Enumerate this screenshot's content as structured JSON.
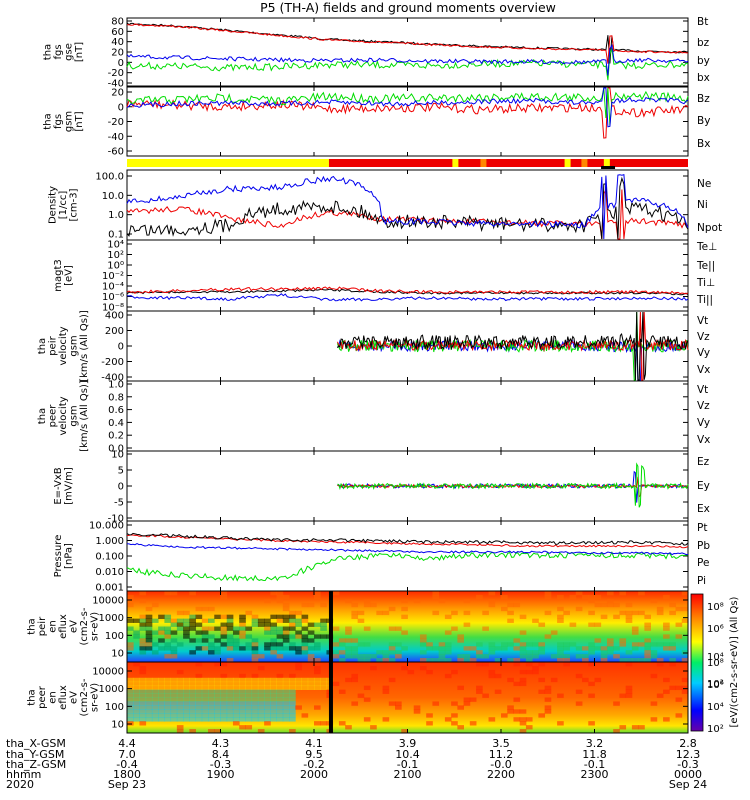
{
  "title": "P5 (TH-A) fields and ground moments overview",
  "colors": {
    "black": "#000000",
    "red": "#ee0000",
    "green": "#00dd00",
    "blue": "#0000ee",
    "yellow": "#ffff00",
    "orange": "#ff8800"
  },
  "chart_data": [
    {
      "type": "line",
      "id": "fgs_gse",
      "ylabel": [
        "tha",
        "fgs",
        "gse",
        "[nT]"
      ],
      "yticks": [
        "80",
        "60",
        "40",
        "20",
        "0",
        "-20",
        "-40"
      ],
      "ylim": [
        -40,
        80
      ],
      "series": [
        {
          "name": "Bt",
          "color": "#000000",
          "values": [
            70,
            66,
            58,
            50,
            42,
            38,
            34,
            30,
            27,
            25,
            22,
            20
          ]
        },
        {
          "name": "bz",
          "color": "#ee0000",
          "values": [
            69,
            65,
            57,
            49,
            41,
            37,
            33,
            29,
            26,
            24,
            21,
            19
          ]
        },
        {
          "name": "by",
          "color": "#00dd00",
          "values": [
            -4,
            -5,
            -8,
            -6,
            -2,
            -3,
            -4,
            -1,
            0,
            -2,
            -4,
            -1
          ]
        },
        {
          "name": "bx",
          "color": "#0000ee",
          "values": [
            12,
            10,
            8,
            6,
            5,
            6,
            4,
            3,
            3,
            2,
            6,
            4
          ]
        }
      ]
    },
    {
      "type": "line",
      "id": "fgs_gsm",
      "ylabel": [
        "tha",
        "fgs",
        "gsm",
        "[nT]"
      ],
      "yticks": [
        "20",
        "0",
        "-20",
        "-40",
        "-60"
      ],
      "ylim": [
        -70,
        25
      ],
      "series": [
        {
          "name": "Bz",
          "color": "#ee0000",
          "values": [
            2,
            0,
            -2,
            1,
            -5,
            -4,
            -3,
            -6,
            -4,
            -3,
            -10,
            -6
          ]
        },
        {
          "name": "By",
          "color": "#00dd00",
          "values": [
            5,
            8,
            10,
            6,
            12,
            9,
            10,
            11,
            12,
            10,
            14,
            8
          ]
        },
        {
          "name": "Bx",
          "color": "#0000ee",
          "values": [
            0,
            2,
            3,
            2,
            4,
            2,
            3,
            5,
            6,
            3,
            8,
            5
          ]
        }
      ]
    },
    {
      "type": "bar",
      "id": "region",
      "note_colors": [
        "#ffff00",
        "#ee0000"
      ],
      "segments": [
        0,
        0.44,
        1
      ]
    },
    {
      "type": "line",
      "id": "density",
      "log": true,
      "ylabel": [
        "Density",
        "[1/cc]",
        "[cm-3]"
      ],
      "yticks": [
        "100.0",
        "10.0",
        "1.0",
        "0.1"
      ],
      "ylim": [
        0.1,
        200
      ],
      "series": [
        {
          "name": "Ne",
          "color": "#ee0000",
          "values": [
            2,
            3,
            1,
            0.4,
            2,
            1,
            0.8,
            0.7,
            0.6,
            0.6,
            0.8,
            0.5
          ]
        },
        {
          "name": "Ni",
          "color": "#000000",
          "values": [
            0.3,
            0.3,
            0.5,
            3,
            4,
            0.8,
            0.7,
            0.6,
            0.5,
            0.5,
            3,
            0.4
          ]
        },
        {
          "name": "Npot",
          "color": "#0000ee",
          "values": [
            6,
            10,
            25,
            30,
            80,
            0.8,
            0.7,
            0.6,
            0.6,
            0.5,
            8,
            0.4
          ]
        }
      ]
    },
    {
      "type": "line",
      "id": "temperature",
      "log": true,
      "ylabel": [
        "magt3",
        "[eV]"
      ],
      "yticks": [
        "10⁴",
        "10²",
        "10⁰",
        "10⁻²",
        "10⁻⁴",
        "10⁻⁶",
        "10⁻⁸"
      ],
      "series": [
        {
          "name": "Te⊥",
          "color": "#ee0000"
        },
        {
          "name": "Te||",
          "color": "#000000"
        },
        {
          "name": "Ti⊥",
          "color": "#0000ee"
        },
        {
          "name": "Ti||",
          "color": "#00dd00"
        }
      ]
    },
    {
      "type": "line",
      "id": "peir_velocity",
      "ylabel": [
        "tha",
        "peir",
        "velocity",
        "gsm",
        "[km/s (All Qs)]"
      ],
      "yticks": [
        "400",
        "200",
        "0",
        "-200",
        "-400"
      ],
      "ylim": [
        -400,
        400
      ],
      "series": [
        {
          "name": "Vt",
          "color": "#000000"
        },
        {
          "name": "Vz",
          "color": "#ee0000"
        },
        {
          "name": "Vy",
          "color": "#00dd00"
        },
        {
          "name": "Vx",
          "color": "#0000ee"
        }
      ]
    },
    {
      "type": "line",
      "id": "peer_velocity",
      "ylabel": [
        "tha",
        "peer",
        "velocity",
        "gsm",
        "[km/s (All Qs)]"
      ],
      "yticks": [
        "1.0",
        "0.8",
        "0.6",
        "0.4",
        "0.2",
        "0.0"
      ],
      "ylim": [
        0,
        1
      ],
      "series": [
        {
          "name": "Vt",
          "color": "#000000"
        },
        {
          "name": "Vz",
          "color": "#ee0000"
        },
        {
          "name": "Vy",
          "color": "#00dd00"
        },
        {
          "name": "Vx",
          "color": "#0000ee"
        }
      ]
    },
    {
      "type": "line",
      "id": "efield",
      "ylabel": [
        "E=-VxB",
        "[mV/m]"
      ],
      "yticks": [
        "10",
        "5",
        "0",
        "-5",
        "-10"
      ],
      "ylim": [
        -10,
        10
      ],
      "series": [
        {
          "name": "Ez",
          "color": "#ee0000"
        },
        {
          "name": "Ey",
          "color": "#00dd00"
        },
        {
          "name": "Ex",
          "color": "#0000ee"
        }
      ]
    },
    {
      "type": "line",
      "id": "pressure",
      "log": true,
      "ylabel": [
        "Pressure",
        "[nPa]"
      ],
      "yticks": [
        "10.000",
        "1.000",
        "0.100",
        "0.010",
        "0.001"
      ],
      "series": [
        {
          "name": "Pt",
          "color": "#000000"
        },
        {
          "name": "Pb",
          "color": "#ee0000"
        },
        {
          "name": "Pe",
          "color": "#00dd00"
        },
        {
          "name": "Pi",
          "color": "#0000ee"
        }
      ]
    },
    {
      "type": "heatmap",
      "id": "peir_spec",
      "ylabel": [
        "tha",
        "peir",
        "en",
        "eflux",
        "eV",
        "(cm2-s-",
        "sr-eV)"
      ],
      "yticks": [
        "10000",
        "1000",
        "100",
        "10"
      ]
    },
    {
      "type": "heatmap",
      "id": "peer_spec",
      "ylabel": [
        "tha",
        "peer",
        "en",
        "eflux",
        "eV",
        "(cm2-s-",
        "sr-eV)"
      ],
      "yticks": [
        "10000",
        "1000",
        "100",
        "10"
      ],
      "colorbar": {
        "label": "[eV/(cm2-s-sr-eV)] (All Qs)",
        "ticks": [
          "10⁸",
          "10⁶",
          "10⁴",
          "10²"
        ]
      }
    }
  ],
  "ephemeris": {
    "row_labels": [
      "tha_X-GSM",
      "tha_Y-GSM",
      "tha_Z-GSM",
      "hhmm",
      "2020"
    ],
    "columns": [
      [
        "4.4",
        "7.0",
        "-0.4",
        "1800",
        "Sep 23"
      ],
      [
        "4.3",
        "8.4",
        "-0.3",
        "1900",
        ""
      ],
      [
        "4.1",
        "9.5",
        "-0.2",
        "2000",
        ""
      ],
      [
        "3.9",
        "10.4",
        "-0.1",
        "2100",
        ""
      ],
      [
        "3.5",
        "11.2",
        "-0.0",
        "2200",
        ""
      ],
      [
        "3.2",
        "11.8",
        "-0.1",
        "2300",
        ""
      ],
      [
        "2.8",
        "12.3",
        "-0.3",
        "0000",
        "Sep 24"
      ]
    ]
  }
}
